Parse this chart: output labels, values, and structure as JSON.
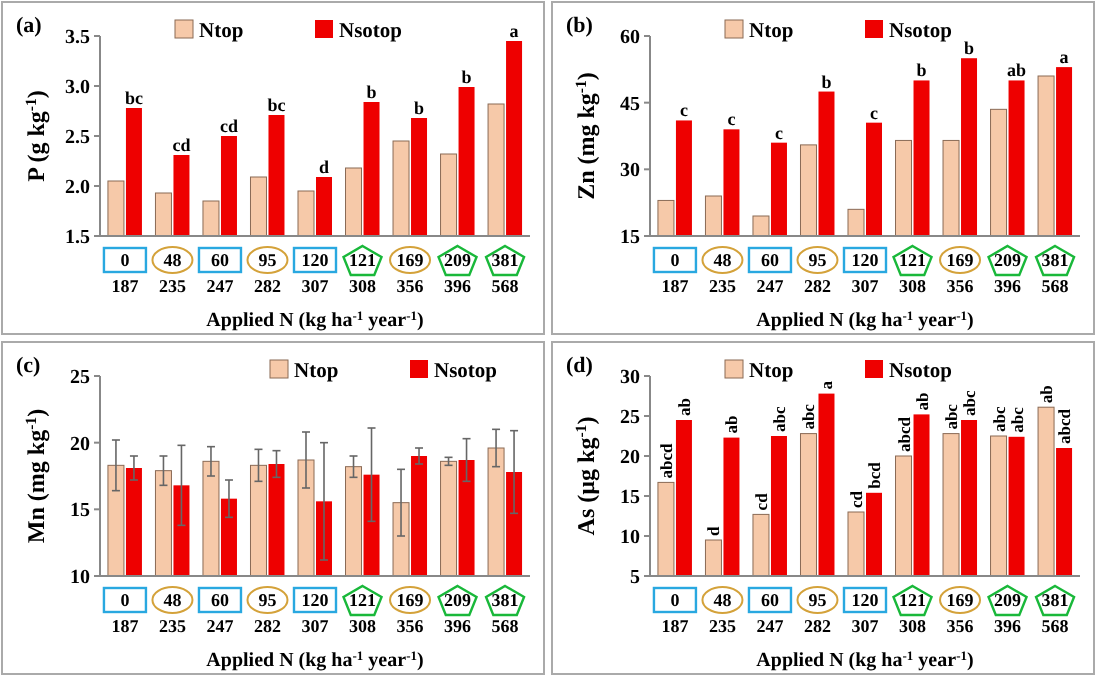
{
  "chart_data": [
    {
      "type": "bar",
      "title": "(a)",
      "ylabel": "P (g kg$^{-1}$)",
      "xlabel": "Applied N (kg ha$^{-1}$ year$^{-1}$)",
      "categories": [
        "0\n187",
        "48\n235",
        "60\n247",
        "95\n282",
        "120\n307",
        "121\n308",
        "169\n356",
        "209\n396",
        "381\n568"
      ],
      "ylim": [
        1.5,
        3.5
      ],
      "yticks": [
        {
          "value": 1.5,
          "label": "1.5"
        },
        {
          "value": 2,
          "label": "2.0"
        },
        {
          "value": 2.5,
          "label": "2.5"
        },
        {
          "value": 3,
          "label": "3.0"
        },
        {
          "value": 3.5,
          "label": "3.5"
        }
      ],
      "legend": "top",
      "grid": false,
      "series": [
        {
          "name": "Ntop",
          "color": "#f6c9a9",
          "values": [
            2.05,
            1.93,
            1.85,
            2.09,
            1.95,
            2.18,
            2.45,
            2.32,
            2.82
          ]
        },
        {
          "name": "Nsotop",
          "color": "#ee0000",
          "values": [
            2.78,
            2.31,
            2.5,
            2.71,
            2.09,
            2.84,
            2.68,
            2.99,
            3.45
          ],
          "value_labels": [
            "bc",
            "cd",
            "cd",
            "bc",
            "d",
            "b",
            "b",
            "b",
            "a"
          ]
        }
      ]
    },
    {
      "type": "bar",
      "title": "(b)",
      "ylabel": "Zn (mg kg$^{-1}$)",
      "xlabel": "Applied N (kg ha$^{-1}$ year$^{-1}$)",
      "categories": [
        "0\n187",
        "48\n235",
        "60\n247",
        "95\n282",
        "120\n307",
        "121\n308",
        "169\n356",
        "209\n396",
        "381\n568"
      ],
      "ylim": [
        15,
        60
      ],
      "yticks": [
        15,
        30,
        45,
        60
      ],
      "legend": "top",
      "grid": false,
      "series": [
        {
          "name": "Ntop",
          "color": "#f6c9a9",
          "values": [
            23,
            24,
            19.5,
            35.5,
            21,
            36.5,
            36.5,
            43.5,
            51
          ]
        },
        {
          "name": "Nsotop",
          "color": "#ee0000",
          "values": [
            41,
            39,
            36,
            47.5,
            40.5,
            50,
            55,
            50,
            53
          ],
          "value_labels": [
            "c",
            "c",
            "c",
            "b",
            "c",
            "b",
            "b",
            "ab",
            "a"
          ]
        }
      ]
    },
    {
      "type": "bar",
      "title": "(c)",
      "ylabel": "Mn (mg kg$^{-1}$)",
      "xlabel": "Applied N (kg ha$^{-1}$ year$^{-1}$)",
      "categories": [
        "0\n187",
        "48\n235",
        "60\n247",
        "95\n282",
        "120\n307",
        "121\n308",
        "169\n356",
        "209\n396",
        "381\n568"
      ],
      "ylim": [
        10,
        25
      ],
      "yticks": [
        10,
        15,
        20,
        25
      ],
      "legend": "top right",
      "grid": false,
      "series": [
        {
          "name": "Ntop",
          "color": "#f6c9a9",
          "values": [
            18.3,
            17.9,
            18.6,
            18.3,
            18.7,
            18.2,
            15.5,
            18.6,
            19.6
          ],
          "errors": [
            1.9,
            1.1,
            1.1,
            1.2,
            2.1,
            0.8,
            2.5,
            0.3,
            1.4
          ]
        },
        {
          "name": "Nsotop",
          "color": "#ee0000",
          "values": [
            18.1,
            16.8,
            15.8,
            18.4,
            15.6,
            17.6,
            19.0,
            18.7,
            17.8
          ],
          "errors": [
            0.9,
            3.0,
            1.4,
            1.0,
            4.4,
            3.5,
            0.6,
            1.6,
            3.1
          ]
        }
      ]
    },
    {
      "type": "bar",
      "title": "(d)",
      "ylabel": "As (µg kg$^{-1}$)",
      "xlabel": "Applied N (kg ha$^{-1}$ year$^{-1}$)",
      "categories": [
        "0\n187",
        "48\n235",
        "60\n247",
        "95\n282",
        "120\n307",
        "121\n308",
        "169\n356",
        "209\n396",
        "381\n568"
      ],
      "ylim": [
        5,
        30
      ],
      "yticks": [
        5,
        10,
        15,
        20,
        25,
        30
      ],
      "legend": "top",
      "grid": false,
      "series": [
        {
          "name": "Ntop",
          "color": "#f6c9a9",
          "values": [
            16.7,
            9.5,
            12.7,
            22.8,
            13.0,
            20.0,
            22.8,
            22.5,
            26.1
          ],
          "value_labels": [
            "abcd",
            "d",
            "cd",
            "abc",
            "cd",
            "abcd",
            "abc",
            "abc",
            "ab"
          ]
        },
        {
          "name": "Nsotop",
          "color": "#ee0000",
          "values": [
            24.5,
            22.3,
            22.5,
            27.8,
            15.4,
            25.2,
            24.5,
            22.4,
            21.0
          ],
          "value_labels": [
            "ab",
            "ab",
            "abc",
            "a",
            "bcd",
            "ab",
            "abc",
            "abc",
            "abcd"
          ]
        }
      ]
    }
  ]
}
